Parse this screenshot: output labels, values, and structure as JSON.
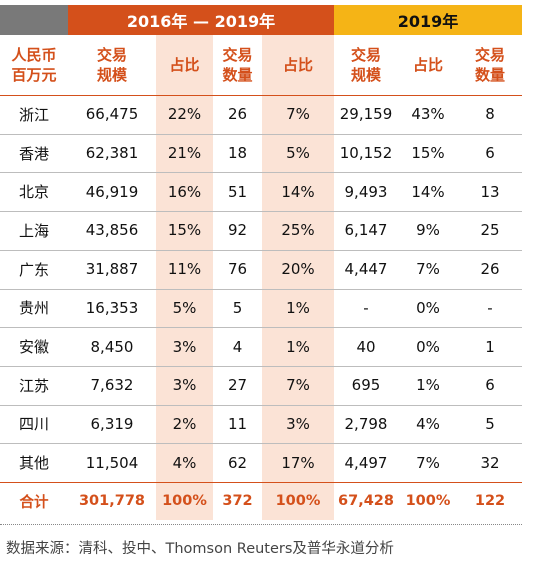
{
  "header": {
    "period_a": "2016年 — 2019年",
    "period_b": "2019年"
  },
  "columns": [
    "人民币\n百万元",
    "交易\n规模",
    "占比",
    "交易\n数量",
    "占比",
    "交易\n规模",
    "占比",
    "交易\n数量"
  ],
  "rows": [
    [
      "浙江",
      "66,475",
      "22%",
      "26",
      "7%",
      "29,159",
      "43%",
      "8"
    ],
    [
      "香港",
      "62,381",
      "21%",
      "18",
      "5%",
      "10,152",
      "15%",
      "6"
    ],
    [
      "北京",
      "46,919",
      "16%",
      "51",
      "14%",
      "9,493",
      "14%",
      "13"
    ],
    [
      "上海",
      "43,856",
      "15%",
      "92",
      "25%",
      "6,147",
      "9%",
      "25"
    ],
    [
      "广东",
      "31,887",
      "11%",
      "76",
      "20%",
      "4,447",
      "7%",
      "26"
    ],
    [
      "贵州",
      "16,353",
      "5%",
      "5",
      "1%",
      "-",
      "0%",
      "-"
    ],
    [
      "安徽",
      "8,450",
      "3%",
      "4",
      "1%",
      "40",
      "0%",
      "1"
    ],
    [
      "江苏",
      "7,632",
      "3%",
      "27",
      "7%",
      "695",
      "1%",
      "6"
    ],
    [
      "四川",
      "6,319",
      "2%",
      "11",
      "3%",
      "2,798",
      "4%",
      "5"
    ],
    [
      "其他",
      "11,504",
      "4%",
      "62",
      "17%",
      "4,497",
      "7%",
      "32"
    ]
  ],
  "total": [
    "合计",
    "301,778",
    "100%",
    "372",
    "100%",
    "67,428",
    "100%",
    "122"
  ],
  "source": "数据来源：清科、投中、Thomson Reuters及普华永道分析",
  "colors": {
    "accent": "#d4501b",
    "gray_header": "#797979",
    "gold_header": "#f5b416",
    "pink_band": "#fbe3d6"
  }
}
